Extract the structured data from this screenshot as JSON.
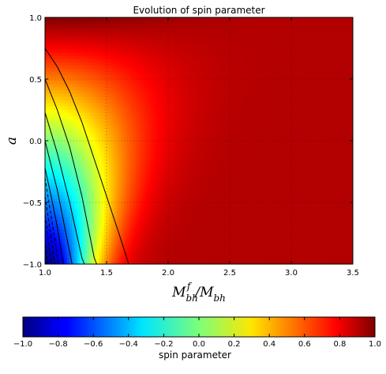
{
  "chart_data": {
    "type": "heatmap",
    "title": "Evolution of spin parameter",
    "xlabel": "M_bh^f / M_bh",
    "ylabel": "a",
    "xlim": [
      1.0,
      3.5
    ],
    "ylim": [
      -1.0,
      1.0
    ],
    "x_ticks": [
      "1.0",
      "1.5",
      "2.0",
      "2.5",
      "3.0",
      "3.5"
    ],
    "y_ticks": [
      "-1.0",
      "-0.5",
      "0.0",
      "0.5",
      "1.0"
    ],
    "grid": true,
    "colormap": "jet",
    "colorbar": {
      "label": "spin parameter",
      "range": [
        -1.0,
        1.0
      ],
      "ticks": [
        "-1.0",
        "-0.8",
        "-0.6",
        "-0.4",
        "-0.2",
        "0.0",
        "0.2",
        "0.4",
        "0.6",
        "0.8",
        "1.0"
      ],
      "placement": "bottom"
    },
    "contour_lines": [
      {
        "level": 0.8,
        "style": "solid",
        "points": [
          [
            1.0,
            0.75
          ],
          [
            1.1,
            0.6
          ],
          [
            1.2,
            0.4
          ],
          [
            1.3,
            0.15
          ],
          [
            1.4,
            -0.15
          ],
          [
            1.5,
            -0.45
          ],
          [
            1.6,
            -0.75
          ],
          [
            1.68,
            -1.0
          ]
        ]
      },
      {
        "level": 0.6,
        "style": "solid",
        "points": [
          [
            1.0,
            0.5
          ],
          [
            1.1,
            0.25
          ],
          [
            1.2,
            -0.05
          ],
          [
            1.3,
            -0.45
          ],
          [
            1.4,
            -0.95
          ],
          [
            1.42,
            -1.0
          ]
        ]
      },
      {
        "level": 0.4,
        "style": "solid",
        "points": [
          [
            1.0,
            0.23
          ],
          [
            1.1,
            -0.1
          ],
          [
            1.2,
            -0.5
          ],
          [
            1.3,
            -0.95
          ],
          [
            1.32,
            -1.0
          ]
        ]
      },
      {
        "level": 0.2,
        "style": "solid",
        "points": [
          [
            1.0,
            0.0
          ],
          [
            1.1,
            -0.4
          ],
          [
            1.2,
            -0.9
          ],
          [
            1.22,
            -1.0
          ]
        ]
      },
      {
        "level": 0.0,
        "style": "solid",
        "points": [
          [
            1.0,
            -0.22
          ],
          [
            1.05,
            -0.45
          ],
          [
            1.1,
            -0.7
          ],
          [
            1.15,
            -1.0
          ]
        ]
      },
      {
        "level": -0.2,
        "style": "dashed",
        "points": [
          [
            1.0,
            -0.3
          ],
          [
            1.04,
            -0.55
          ],
          [
            1.08,
            -0.8
          ],
          [
            1.11,
            -1.0
          ]
        ]
      },
      {
        "level": -0.4,
        "style": "dashed",
        "points": [
          [
            1.0,
            -0.45
          ],
          [
            1.03,
            -0.65
          ],
          [
            1.06,
            -0.85
          ],
          [
            1.08,
            -1.0
          ]
        ]
      },
      {
        "level": -0.6,
        "style": "dashed",
        "points": [
          [
            1.0,
            -0.6
          ],
          [
            1.02,
            -0.75
          ],
          [
            1.04,
            -0.9
          ],
          [
            1.05,
            -1.0
          ]
        ]
      },
      {
        "level": -0.8,
        "style": "dashed",
        "points": [
          [
            1.0,
            -0.8
          ],
          [
            1.01,
            -0.9
          ],
          [
            1.02,
            -1.0
          ]
        ]
      }
    ]
  }
}
